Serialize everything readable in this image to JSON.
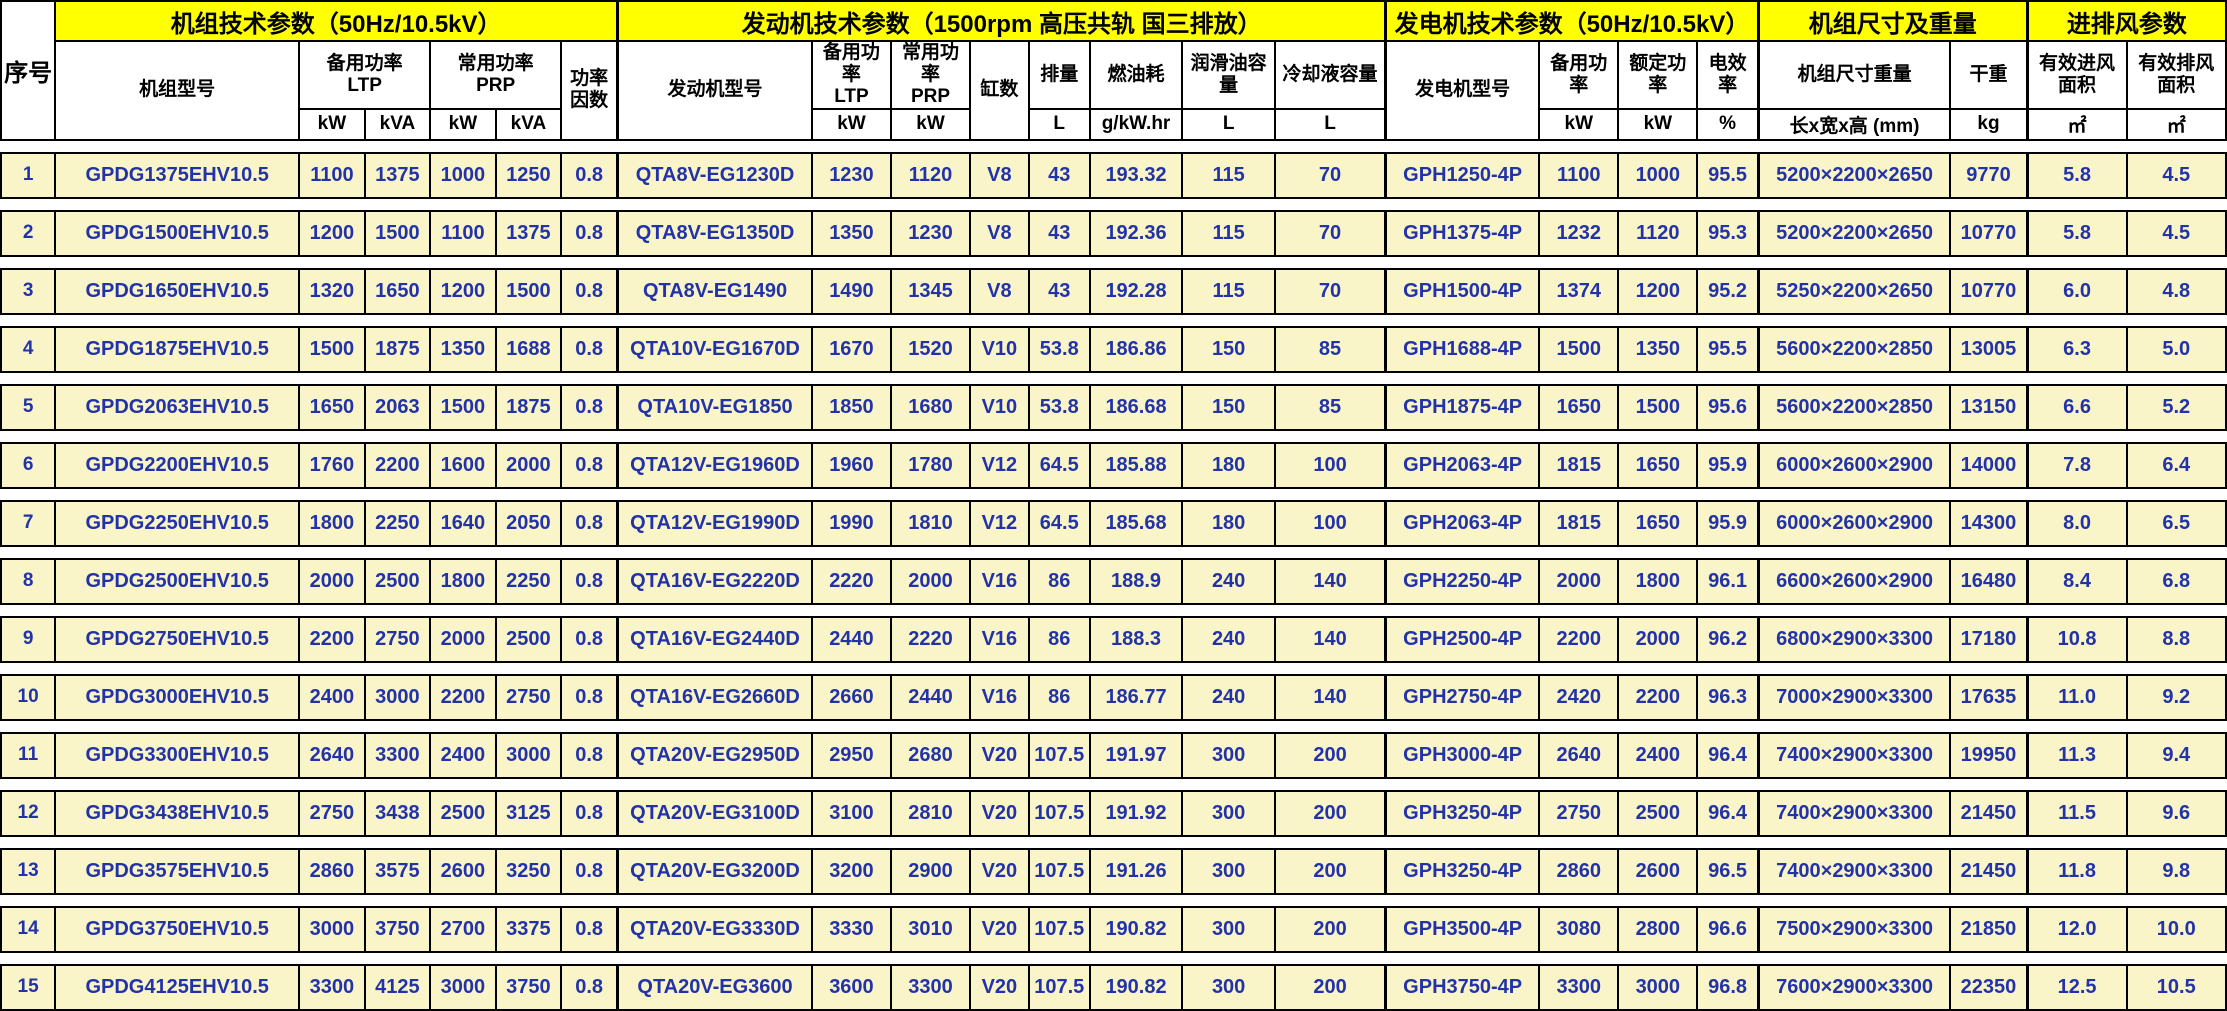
{
  "header": {
    "serial": "序号",
    "groups": [
      {
        "label": "机组技术参数（50Hz/10.5kV）",
        "span": 6
      },
      {
        "label": "发动机技术参数（1500rpm 高压共轨 国三排放）",
        "span": 8
      },
      {
        "label": "发电机技术参数（50Hz/10.5kV）",
        "span": 4
      },
      {
        "label": "机组尺寸及重量",
        "span": 2
      },
      {
        "label": "进排风参数",
        "span": 2
      }
    ],
    "sub": [
      {
        "label": "机组型号"
      },
      {
        "label": "备用功率\nLTP"
      },
      {
        "label": "常用功率\nPRP"
      },
      {
        "label": "功率\n因数"
      },
      {
        "label": "发动机型号"
      },
      {
        "label": "备用功率\nLTP"
      },
      {
        "label": "常用功率\nPRP"
      },
      {
        "label": "缸数"
      },
      {
        "label": "排量"
      },
      {
        "label": "燃油耗"
      },
      {
        "label": "润滑油容量"
      },
      {
        "label": "冷却液容量"
      },
      {
        "label": "发电机型号"
      },
      {
        "label": "备用功率"
      },
      {
        "label": "额定功率"
      },
      {
        "label": "电效率"
      },
      {
        "label": "机组尺寸重量"
      },
      {
        "label": "干重"
      },
      {
        "label": "有效进风\n面积"
      },
      {
        "label": "有效排风\n面积"
      }
    ],
    "units": [
      "kW",
      "kVA",
      "kW",
      "kVA",
      "kW",
      "kW",
      "L",
      "g/kW.hr",
      "L",
      "L",
      "kW",
      "kW",
      "%",
      "长x宽x高 (mm)",
      "kg",
      "㎡",
      "㎡"
    ]
  },
  "columns": [
    {
      "key": "serial-number",
      "width": 2.4,
      "sec": false
    },
    {
      "key": "genset-model",
      "width": 10.8,
      "sec": false
    },
    {
      "key": "genset-ltp-kw",
      "width": 2.9,
      "sec": false
    },
    {
      "key": "genset-ltp-kva",
      "width": 2.9,
      "sec": false
    },
    {
      "key": "genset-prp-kw",
      "width": 2.9,
      "sec": false
    },
    {
      "key": "genset-prp-kva",
      "width": 2.9,
      "sec": false
    },
    {
      "key": "power-factor",
      "width": 2.5,
      "sec": false
    },
    {
      "key": "engine-model",
      "width": 8.6,
      "sec": true
    },
    {
      "key": "engine-ltp-kw",
      "width": 3.5,
      "sec": false
    },
    {
      "key": "engine-prp-kw",
      "width": 3.5,
      "sec": false
    },
    {
      "key": "cylinders",
      "width": 2.6,
      "sec": false
    },
    {
      "key": "displacement",
      "width": 2.7,
      "sec": false
    },
    {
      "key": "fuel-consumption",
      "width": 4.1,
      "sec": false
    },
    {
      "key": "lube-oil-capacity",
      "width": 4.1,
      "sec": false
    },
    {
      "key": "coolant-capacity",
      "width": 4.9,
      "sec": false
    },
    {
      "key": "alternator-model",
      "width": 6.8,
      "sec": true
    },
    {
      "key": "alternator-standby-kw",
      "width": 3.5,
      "sec": false
    },
    {
      "key": "alternator-rated-kw",
      "width": 3.5,
      "sec": false
    },
    {
      "key": "efficiency",
      "width": 2.7,
      "sec": false
    },
    {
      "key": "dimensions",
      "width": 8.5,
      "sec": true
    },
    {
      "key": "dry-weight",
      "width": 3.4,
      "sec": false
    },
    {
      "key": "intake-area",
      "width": 4.4,
      "sec": true
    },
    {
      "key": "exhaust-area",
      "width": 4.4,
      "sec": false
    }
  ],
  "rows": [
    [
      "1",
      "GPDG1375EHV10.5",
      "1100",
      "1375",
      "1000",
      "1250",
      "0.8",
      "QTA8V-EG1230D",
      "1230",
      "1120",
      "V8",
      "43",
      "193.32",
      "115",
      "70",
      "GPH1250-4P",
      "1100",
      "1000",
      "95.5",
      "5200×2200×2650",
      "9770",
      "5.8",
      "4.5"
    ],
    [
      "2",
      "GPDG1500EHV10.5",
      "1200",
      "1500",
      "1100",
      "1375",
      "0.8",
      "QTA8V-EG1350D",
      "1350",
      "1230",
      "V8",
      "43",
      "192.36",
      "115",
      "70",
      "GPH1375-4P",
      "1232",
      "1120",
      "95.3",
      "5200×2200×2650",
      "10770",
      "5.8",
      "4.5"
    ],
    [
      "3",
      "GPDG1650EHV10.5",
      "1320",
      "1650",
      "1200",
      "1500",
      "0.8",
      "QTA8V-EG1490",
      "1490",
      "1345",
      "V8",
      "43",
      "192.28",
      "115",
      "70",
      "GPH1500-4P",
      "1374",
      "1200",
      "95.2",
      "5250×2200×2650",
      "10770",
      "6.0",
      "4.8"
    ],
    [
      "4",
      "GPDG1875EHV10.5",
      "1500",
      "1875",
      "1350",
      "1688",
      "0.8",
      "QTA10V-EG1670D",
      "1670",
      "1520",
      "V10",
      "53.8",
      "186.86",
      "150",
      "85",
      "GPH1688-4P",
      "1500",
      "1350",
      "95.5",
      "5600×2200×2850",
      "13005",
      "6.3",
      "5.0"
    ],
    [
      "5",
      "GPDG2063EHV10.5",
      "1650",
      "2063",
      "1500",
      "1875",
      "0.8",
      "QTA10V-EG1850",
      "1850",
      "1680",
      "V10",
      "53.8",
      "186.68",
      "150",
      "85",
      "GPH1875-4P",
      "1650",
      "1500",
      "95.6",
      "5600×2200×2850",
      "13150",
      "6.6",
      "5.2"
    ],
    [
      "6",
      "GPDG2200EHV10.5",
      "1760",
      "2200",
      "1600",
      "2000",
      "0.8",
      "QTA12V-EG1960D",
      "1960",
      "1780",
      "V12",
      "64.5",
      "185.88",
      "180",
      "100",
      "GPH2063-4P",
      "1815",
      "1650",
      "95.9",
      "6000×2600×2900",
      "14000",
      "7.8",
      "6.4"
    ],
    [
      "7",
      "GPDG2250EHV10.5",
      "1800",
      "2250",
      "1640",
      "2050",
      "0.8",
      "QTA12V-EG1990D",
      "1990",
      "1810",
      "V12",
      "64.5",
      "185.68",
      "180",
      "100",
      "GPH2063-4P",
      "1815",
      "1650",
      "95.9",
      "6000×2600×2900",
      "14300",
      "8.0",
      "6.5"
    ],
    [
      "8",
      "GPDG2500EHV10.5",
      "2000",
      "2500",
      "1800",
      "2250",
      "0.8",
      "QTA16V-EG2220D",
      "2220",
      "2000",
      "V16",
      "86",
      "188.9",
      "240",
      "140",
      "GPH2250-4P",
      "2000",
      "1800",
      "96.1",
      "6600×2600×2900",
      "16480",
      "8.4",
      "6.8"
    ],
    [
      "9",
      "GPDG2750EHV10.5",
      "2200",
      "2750",
      "2000",
      "2500",
      "0.8",
      "QTA16V-EG2440D",
      "2440",
      "2220",
      "V16",
      "86",
      "188.3",
      "240",
      "140",
      "GPH2500-4P",
      "2200",
      "2000",
      "96.2",
      "6800×2900×3300",
      "17180",
      "10.8",
      "8.8"
    ],
    [
      "10",
      "GPDG3000EHV10.5",
      "2400",
      "3000",
      "2200",
      "2750",
      "0.8",
      "QTA16V-EG2660D",
      "2660",
      "2440",
      "V16",
      "86",
      "186.77",
      "240",
      "140",
      "GPH2750-4P",
      "2420",
      "2200",
      "96.3",
      "7000×2900×3300",
      "17635",
      "11.0",
      "9.2"
    ],
    [
      "11",
      "GPDG3300EHV10.5",
      "2640",
      "3300",
      "2400",
      "3000",
      "0.8",
      "QTA20V-EG2950D",
      "2950",
      "2680",
      "V20",
      "107.5",
      "191.97",
      "300",
      "200",
      "GPH3000-4P",
      "2640",
      "2400",
      "96.4",
      "7400×2900×3300",
      "19950",
      "11.3",
      "9.4"
    ],
    [
      "12",
      "GPDG3438EHV10.5",
      "2750",
      "3438",
      "2500",
      "3125",
      "0.8",
      "QTA20V-EG3100D",
      "3100",
      "2810",
      "V20",
      "107.5",
      "191.92",
      "300",
      "200",
      "GPH3250-4P",
      "2750",
      "2500",
      "96.4",
      "7400×2900×3300",
      "21450",
      "11.5",
      "9.6"
    ],
    [
      "13",
      "GPDG3575EHV10.5",
      "2860",
      "3575",
      "2600",
      "3250",
      "0.8",
      "QTA20V-EG3200D",
      "3200",
      "2900",
      "V20",
      "107.5",
      "191.26",
      "300",
      "200",
      "GPH3250-4P",
      "2860",
      "2600",
      "96.5",
      "7400×2900×3300",
      "21450",
      "11.8",
      "9.8"
    ],
    [
      "14",
      "GPDG3750EHV10.5",
      "3000",
      "3750",
      "2700",
      "3375",
      "0.8",
      "QTA20V-EG3330D",
      "3330",
      "3010",
      "V20",
      "107.5",
      "190.82",
      "300",
      "200",
      "GPH3500-4P",
      "3080",
      "2800",
      "96.6",
      "7500×2900×3300",
      "21850",
      "12.0",
      "10.0"
    ],
    [
      "15",
      "GPDG4125EHV10.5",
      "3300",
      "4125",
      "3000",
      "3750",
      "0.8",
      "QTA20V-EG3600",
      "3600",
      "3300",
      "V20",
      "107.5",
      "190.82",
      "300",
      "200",
      "GPH3750-4P",
      "3300",
      "3000",
      "96.8",
      "7600×2900×3300",
      "22350",
      "12.5",
      "10.5"
    ]
  ],
  "colors": {
    "group_header_bg": "#ffff00",
    "row_bg": "#faf5c8",
    "data_text": "#2233aa",
    "border": "#000000"
  }
}
